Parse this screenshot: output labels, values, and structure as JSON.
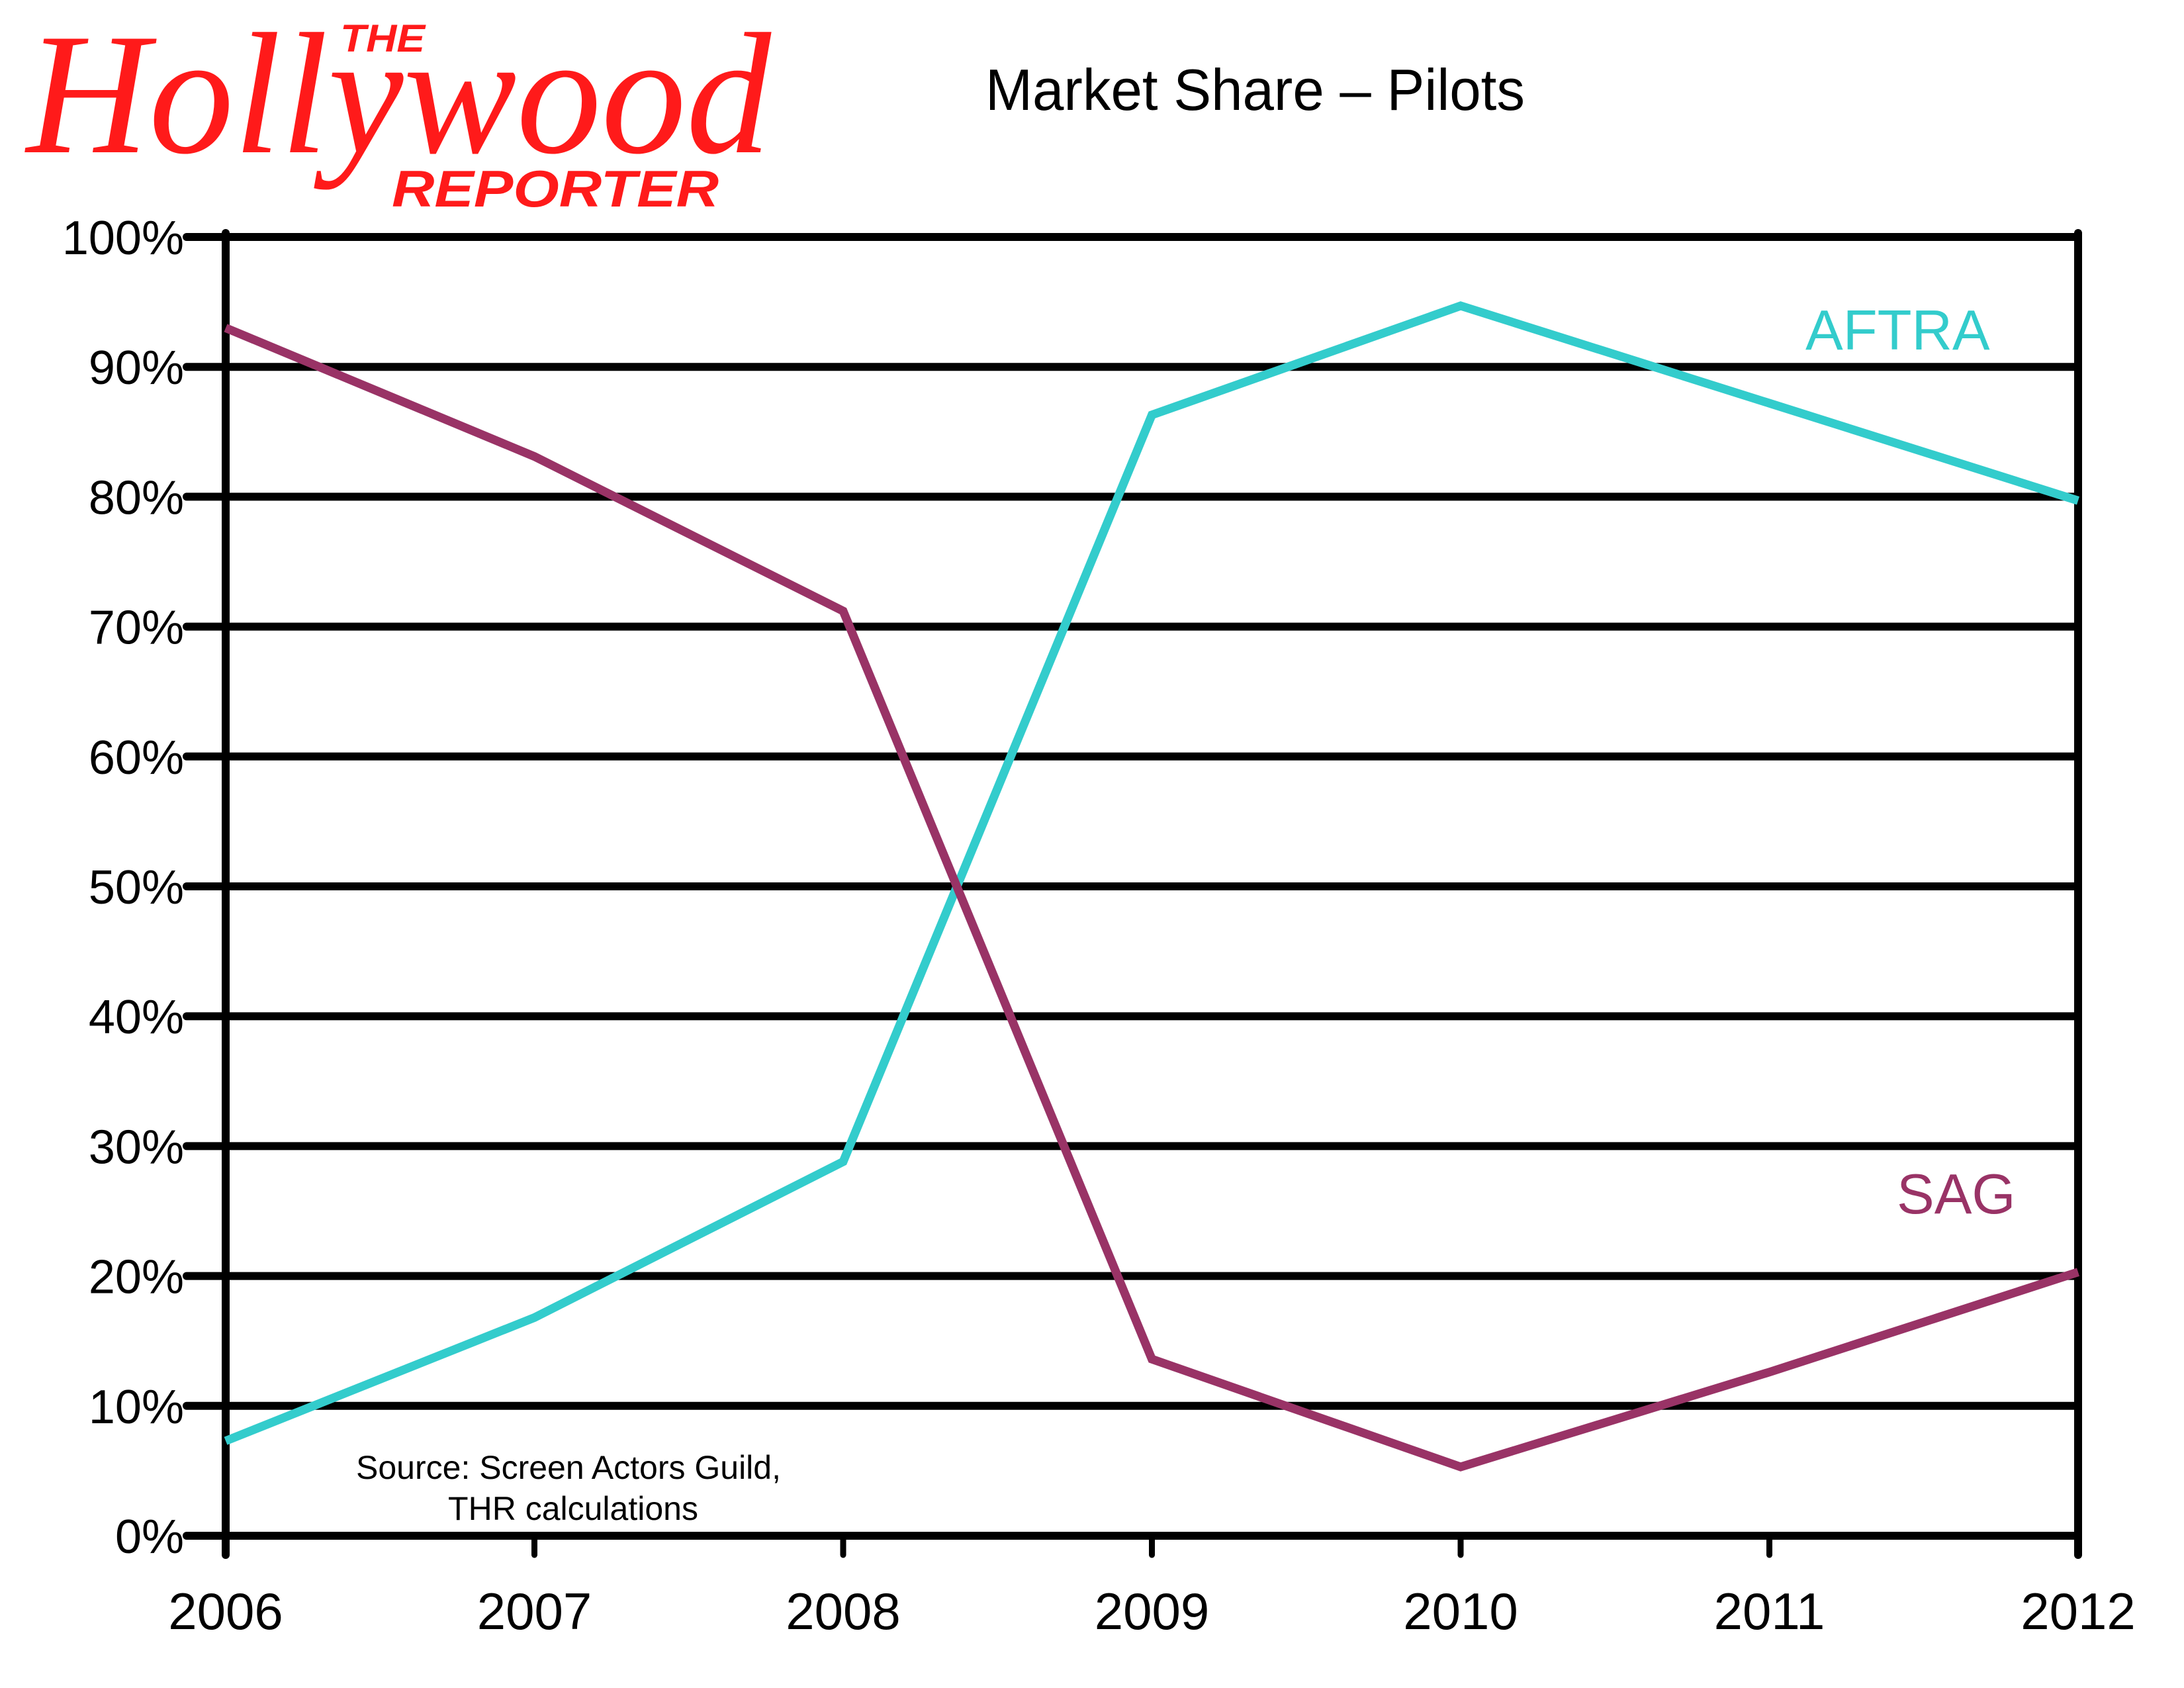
{
  "branding": {
    "logo_the": "THE",
    "logo_main": "Hollywood",
    "logo_sub": "REPORTER",
    "logo_color": "#FF1A1A"
  },
  "chart_data": {
    "type": "line",
    "title": "Market Share – Pilots",
    "xlabel": "",
    "ylabel": "",
    "x": [
      "2006",
      "2007",
      "2008",
      "2009",
      "2010",
      "2011",
      "2012"
    ],
    "ylim": [
      0,
      100
    ],
    "yticks": [
      0,
      10,
      20,
      30,
      40,
      50,
      60,
      70,
      80,
      90,
      100
    ],
    "ytick_labels": [
      "0%",
      "10%",
      "20%",
      "30%",
      "40%",
      "50%",
      "60%",
      "70%",
      "80%",
      "90%",
      "100%"
    ],
    "grid": true,
    "legend": "inline labels (AFTRA top-right, SAG lower-right)",
    "series": [
      {
        "name": "AFTRA",
        "color": "#33CCCC",
        "values": [
          7.3,
          16.8,
          28.8,
          86.3,
          94.7,
          87.2,
          79.7
        ]
      },
      {
        "name": "SAG",
        "color": "#993366",
        "values": [
          93.0,
          83.1,
          71.2,
          13.6,
          5.3,
          12.6,
          20.3
        ]
      }
    ],
    "annotations": {
      "source_line1": "Source: Screen Actors Guild,",
      "source_line2": "THR calculations"
    }
  }
}
